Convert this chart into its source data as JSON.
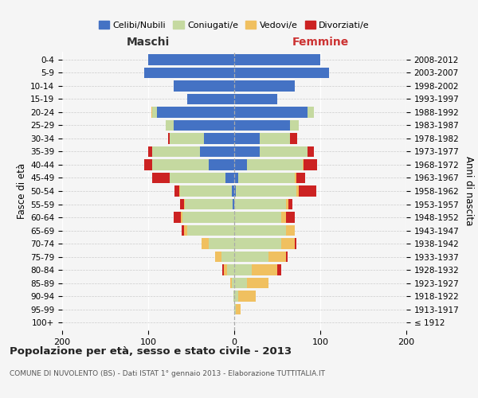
{
  "age_groups": [
    "100+",
    "95-99",
    "90-94",
    "85-89",
    "80-84",
    "75-79",
    "70-74",
    "65-69",
    "60-64",
    "55-59",
    "50-54",
    "45-49",
    "40-44",
    "35-39",
    "30-34",
    "25-29",
    "20-24",
    "15-19",
    "10-14",
    "5-9",
    "0-4"
  ],
  "birth_years": [
    "≤ 1912",
    "1913-1917",
    "1918-1922",
    "1923-1927",
    "1928-1932",
    "1933-1937",
    "1938-1942",
    "1943-1947",
    "1948-1952",
    "1953-1957",
    "1958-1962",
    "1963-1967",
    "1968-1972",
    "1973-1977",
    "1978-1982",
    "1983-1987",
    "1988-1992",
    "1993-1997",
    "1998-2002",
    "2003-2007",
    "2008-2012"
  ],
  "maschi": {
    "celibi": [
      0,
      0,
      0,
      0,
      0,
      0,
      0,
      0,
      0,
      2,
      3,
      10,
      30,
      40,
      35,
      70,
      90,
      55,
      70,
      105,
      100
    ],
    "coniugati": [
      0,
      0,
      1,
      3,
      8,
      15,
      30,
      55,
      60,
      55,
      60,
      65,
      65,
      55,
      40,
      10,
      5,
      0,
      0,
      0,
      0
    ],
    "vedovi": [
      0,
      0,
      0,
      2,
      4,
      7,
      8,
      3,
      2,
      1,
      1,
      0,
      0,
      0,
      0,
      0,
      1,
      0,
      0,
      0,
      0
    ],
    "divorziati": [
      0,
      0,
      0,
      0,
      2,
      0,
      0,
      3,
      8,
      5,
      5,
      20,
      10,
      5,
      2,
      0,
      0,
      0,
      0,
      0,
      0
    ]
  },
  "femmine": {
    "nubili": [
      0,
      0,
      0,
      0,
      0,
      0,
      0,
      0,
      0,
      0,
      2,
      5,
      15,
      30,
      30,
      65,
      85,
      50,
      70,
      110,
      100
    ],
    "coniugate": [
      0,
      2,
      5,
      15,
      20,
      40,
      55,
      60,
      55,
      60,
      70,
      65,
      65,
      55,
      35,
      10,
      8,
      0,
      0,
      0,
      0
    ],
    "vedove": [
      0,
      5,
      20,
      25,
      30,
      20,
      15,
      10,
      5,
      3,
      3,
      2,
      1,
      0,
      0,
      0,
      0,
      0,
      0,
      0,
      0
    ],
    "divorziate": [
      0,
      0,
      0,
      0,
      5,
      2,
      2,
      0,
      10,
      5,
      20,
      10,
      15,
      8,
      8,
      0,
      0,
      0,
      0,
      0,
      0
    ]
  },
  "colors": {
    "celibi": "#4472c4",
    "coniugati": "#c5d9a0",
    "vedovi": "#f0c060",
    "divorziati": "#cc2222"
  },
  "xlim": 200,
  "title": "Popolazione per età, sesso e stato civile - 2013",
  "subtitle": "COMUNE DI NUVOLENTO (BS) - Dati ISTAT 1° gennaio 2013 - Elaborazione TUTTITALIA.IT",
  "ylabel_left": "Fasce di età",
  "ylabel_right": "Anni di nascita",
  "xlabel_maschi": "Maschi",
  "xlabel_femmine": "Femmine",
  "bg_color": "#f5f5f5",
  "legend_labels": [
    "Celibi/Nubili",
    "Coniugati/e",
    "Vedovi/e",
    "Divorziati/e"
  ]
}
